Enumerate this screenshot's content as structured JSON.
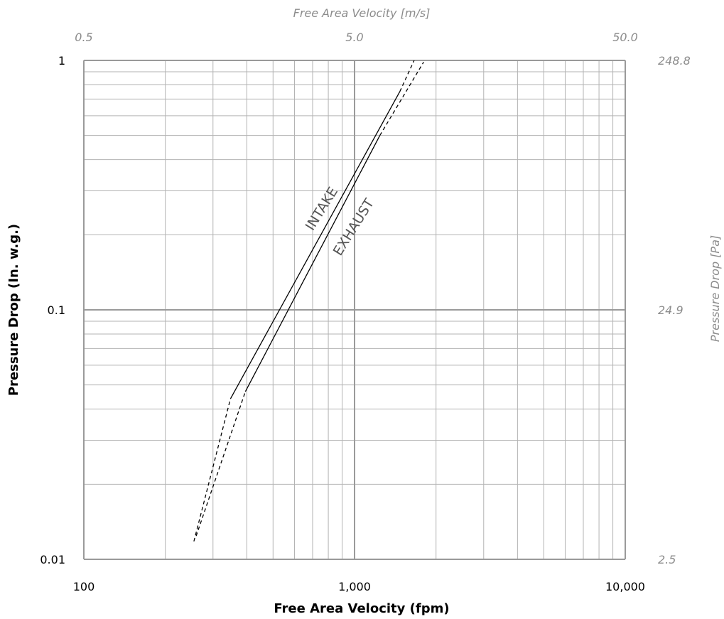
{
  "chart_data": {
    "type": "line",
    "scale": "log-log",
    "grid": true,
    "xlabel": "Free Area Velocity (fpm)",
    "ylabel": "Pressure Drop (In. w.g.)",
    "x2label": "Free Area Velocity [m/s]",
    "y2label": "Pressure Drop [Pa]",
    "xlim": [
      100,
      10000
    ],
    "ylim": [
      0.01,
      1
    ],
    "x_ticks": [
      {
        "value": 100,
        "label": "100"
      },
      {
        "value": 1000,
        "label": "1,000"
      },
      {
        "value": 10000,
        "label": "10,000"
      }
    ],
    "y_ticks": [
      {
        "value": 0.01,
        "label": "0.01"
      },
      {
        "value": 0.1,
        "label": "0.1"
      },
      {
        "value": 1,
        "label": "1"
      }
    ],
    "x2_ticks": [
      {
        "value": 100,
        "label": "0.5"
      },
      {
        "value": 1000,
        "label": "5.0"
      },
      {
        "value": 10000,
        "label": "50.0"
      }
    ],
    "y2_ticks": [
      {
        "value": 0.01,
        "label": "2.5"
      },
      {
        "value": 0.1,
        "label": "24.9"
      },
      {
        "value": 1,
        "label": "248.8"
      }
    ],
    "series": [
      {
        "name": "INTAKE",
        "color": "#000000",
        "solid": [
          [
            348,
            0.044
          ],
          [
            1470,
            0.75
          ]
        ],
        "dashed_low": [
          [
            255,
            0.0118
          ],
          [
            348,
            0.044
          ]
        ],
        "dashed_high": [
          [
            1470,
            0.75
          ],
          [
            1660,
            1.0
          ]
        ]
      },
      {
        "name": "EXHAUST",
        "color": "#000000",
        "solid": [
          [
            395,
            0.047
          ],
          [
            1240,
            0.5
          ]
        ],
        "dashed_low": [
          [
            260,
            0.0124
          ],
          [
            395,
            0.047
          ]
        ],
        "dashed_high": [
          [
            1240,
            0.5
          ],
          [
            1800,
            0.985
          ]
        ]
      }
    ]
  }
}
